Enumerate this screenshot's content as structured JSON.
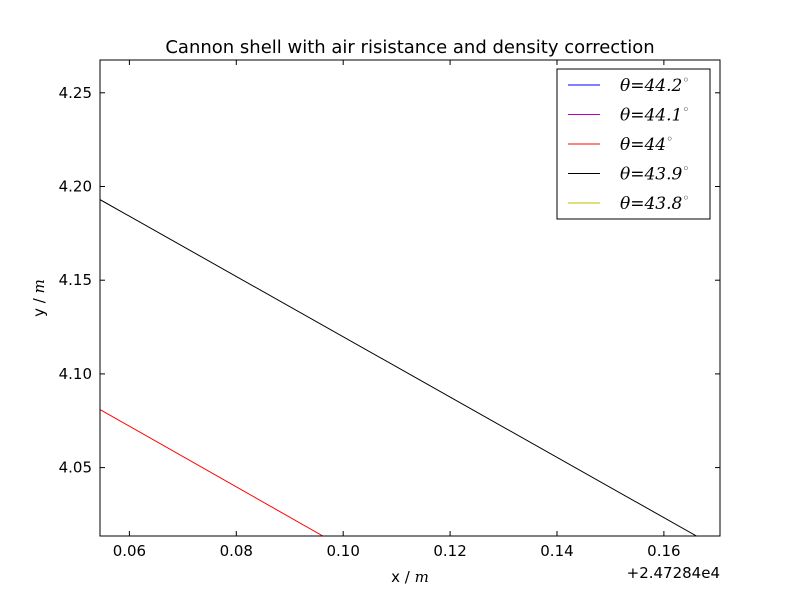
{
  "chart_data": {
    "type": "line",
    "title": "Cannon shell with air risistance and density correction",
    "xlabel": "x / ",
    "xlabel_unit": "m",
    "ylabel": "y / ",
    "ylabel_unit": "m",
    "x_offset_label": "+2.47284e4",
    "xlim": [
      0.0545,
      0.1705
    ],
    "ylim": [
      4.0135,
      4.2675
    ],
    "x_ticks": [
      0.06,
      0.08,
      0.1,
      0.12,
      0.14,
      0.16
    ],
    "x_tick_labels": [
      "0.06",
      "0.08",
      "0.10",
      "0.12",
      "0.14",
      "0.16"
    ],
    "y_ticks": [
      4.05,
      4.1,
      4.15,
      4.2,
      4.25
    ],
    "y_tick_labels": [
      "4.05",
      "4.10",
      "4.15",
      "4.20",
      "4.25"
    ],
    "grid": false,
    "legend_position": "top-right",
    "series": [
      {
        "name": "θ = 44.2°",
        "legend_prefix": "θ",
        "legend_value": "44.2",
        "color": "#0000ff",
        "x": [],
        "y": []
      },
      {
        "name": "θ = 44.1°",
        "legend_prefix": "θ",
        "legend_value": "44.1",
        "color": "#bf00bf",
        "x": [],
        "y": []
      },
      {
        "name": "θ = 44°",
        "legend_prefix": "θ",
        "legend_value": "44",
        "color": "#ff0000",
        "x": [
          0.0545,
          0.0962
        ],
        "y": [
          4.081,
          4.0135
        ]
      },
      {
        "name": "θ = 43.9°",
        "legend_prefix": "θ",
        "legend_value": "43.9",
        "color": "#000000",
        "x": [
          0.0545,
          0.1661
        ],
        "y": [
          4.193,
          4.0135
        ]
      },
      {
        "name": "θ = 43.8°",
        "legend_prefix": "θ",
        "legend_value": "43.8",
        "color": "#bfbf00",
        "x": [],
        "y": []
      }
    ]
  }
}
